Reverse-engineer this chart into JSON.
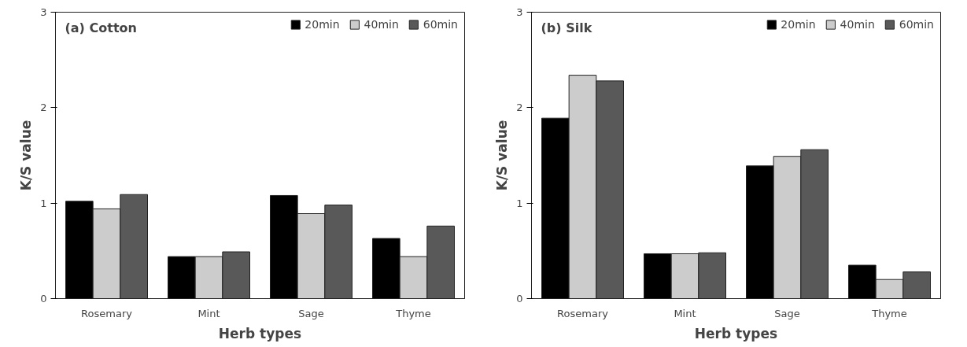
{
  "chart_data": [
    {
      "type": "bar",
      "title": "(a) Cotton",
      "xlabel": "Herb types",
      "ylabel": "K/S value",
      "categories": [
        "Rosemary",
        "Mint",
        "Sage",
        "Thyme"
      ],
      "series": [
        {
          "name": "20min",
          "color": "#000000",
          "values": [
            1.02,
            0.44,
            1.08,
            0.63
          ]
        },
        {
          "name": "40min",
          "color": "#cccccc",
          "values": [
            0.94,
            0.44,
            0.89,
            0.44
          ]
        },
        {
          "name": "60min",
          "color": "#595959",
          "values": [
            1.09,
            0.49,
            0.98,
            0.76
          ]
        }
      ],
      "ylim": [
        0,
        3
      ],
      "yticks": [
        0,
        1,
        2,
        3
      ],
      "grid": false,
      "legend": "top right"
    },
    {
      "type": "bar",
      "title": "(b) Silk",
      "xlabel": "Herb types",
      "ylabel": "K/S value",
      "categories": [
        "Rosemary",
        "Mint",
        "Sage",
        "Thyme"
      ],
      "series": [
        {
          "name": "20min",
          "color": "#000000",
          "values": [
            1.89,
            0.47,
            1.39,
            0.35
          ]
        },
        {
          "name": "40min",
          "color": "#cccccc",
          "values": [
            2.34,
            0.47,
            1.49,
            0.2
          ]
        },
        {
          "name": "60min",
          "color": "#595959",
          "values": [
            2.28,
            0.48,
            1.56,
            0.28
          ]
        }
      ],
      "ylim": [
        0,
        3
      ],
      "yticks": [
        0,
        1,
        2,
        3
      ],
      "grid": false,
      "legend": "top right"
    }
  ]
}
